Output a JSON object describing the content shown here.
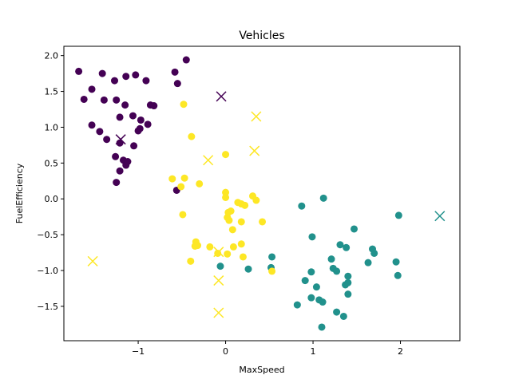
{
  "chart_data": {
    "type": "scatter",
    "title": "Vehicles",
    "xlabel": "MaxSpeed",
    "ylabel": "FuelEfficiency",
    "xlim": [
      -1.85,
      2.68
    ],
    "ylim": [
      -1.98,
      2.13
    ],
    "xticks": [
      -1,
      0,
      1,
      2
    ],
    "xtick_labels": [
      "−1",
      "0",
      "1",
      "2"
    ],
    "yticks": [
      -1.5,
      -1.0,
      -0.5,
      0.0,
      0.5,
      1.0,
      1.5,
      2.0
    ],
    "ytick_labels": [
      "−1.5",
      "−1.0",
      "−0.5",
      "0.0",
      "0.5",
      "1.0",
      "1.5",
      "2.0"
    ],
    "grid": false,
    "legend": "none",
    "series": [
      {
        "marker": "circle",
        "color": "#440154",
        "points": [
          [
            -1.68,
            1.78
          ],
          [
            -1.62,
            1.39
          ],
          [
            -1.53,
            1.53
          ],
          [
            -1.53,
            1.03
          ],
          [
            -1.44,
            0.94
          ],
          [
            -1.41,
            1.75
          ],
          [
            -1.39,
            1.38
          ],
          [
            -1.36,
            0.83
          ],
          [
            -1.27,
            1.65
          ],
          [
            -1.25,
            1.38
          ],
          [
            -1.26,
            0.59
          ],
          [
            -1.25,
            0.23
          ],
          [
            -1.21,
            0.78
          ],
          [
            -1.21,
            0.39
          ],
          [
            -1.21,
            1.14
          ],
          [
            -1.17,
            0.54
          ],
          [
            -1.15,
            1.31
          ],
          [
            -1.14,
            1.71
          ],
          [
            -1.14,
            0.47
          ],
          [
            -1.12,
            0.52
          ],
          [
            -1.06,
            1.16
          ],
          [
            -1.05,
            0.74
          ],
          [
            -1.03,
            1.73
          ],
          [
            -1.0,
            0.95
          ],
          [
            -0.98,
            0.98
          ],
          [
            -0.97,
            1.1
          ],
          [
            -0.91,
            1.65
          ],
          [
            -0.89,
            1.04
          ],
          [
            -0.86,
            1.31
          ],
          [
            -0.82,
            1.3
          ],
          [
            -0.58,
            1.77
          ],
          [
            -0.55,
            1.61
          ],
          [
            -0.45,
            1.94
          ],
          [
            -0.56,
            0.12
          ]
        ]
      },
      {
        "marker": "circle",
        "color": "#21918c",
        "points": [
          [
            -0.06,
            -0.94
          ],
          [
            0.26,
            -0.98
          ],
          [
            0.52,
            -0.96
          ],
          [
            0.53,
            -0.81
          ],
          [
            0.82,
            -1.48
          ],
          [
            0.87,
            -0.1
          ],
          [
            0.91,
            -1.14
          ],
          [
            0.98,
            -1.02
          ],
          [
            0.98,
            -1.38
          ],
          [
            0.99,
            -0.53
          ],
          [
            1.04,
            -1.23
          ],
          [
            1.07,
            -1.41
          ],
          [
            1.11,
            -1.44
          ],
          [
            1.1,
            -1.79
          ],
          [
            1.12,
            0.01
          ],
          [
            1.21,
            -0.84
          ],
          [
            1.23,
            -0.97
          ],
          [
            1.27,
            -1.01
          ],
          [
            1.27,
            -1.58
          ],
          [
            1.31,
            -0.64
          ],
          [
            1.35,
            -1.64
          ],
          [
            1.37,
            -1.2
          ],
          [
            1.38,
            -0.68
          ],
          [
            1.4,
            -1.17
          ],
          [
            1.4,
            -1.08
          ],
          [
            1.4,
            -1.33
          ],
          [
            1.47,
            -0.42
          ],
          [
            1.63,
            -0.89
          ],
          [
            1.68,
            -0.7
          ],
          [
            1.7,
            -0.76
          ],
          [
            1.95,
            -0.88
          ],
          [
            1.97,
            -1.07
          ],
          [
            1.98,
            -0.23
          ]
        ]
      },
      {
        "marker": "circle",
        "color": "#fde725",
        "points": [
          [
            -0.61,
            0.28
          ],
          [
            -0.51,
            0.17
          ],
          [
            -0.49,
            -0.22
          ],
          [
            -0.47,
            0.29
          ],
          [
            -0.48,
            1.32
          ],
          [
            -0.39,
            0.87
          ],
          [
            -0.4,
            -0.87
          ],
          [
            -0.35,
            -0.66
          ],
          [
            -0.34,
            -0.6
          ],
          [
            -0.32,
            -0.65
          ],
          [
            -0.3,
            0.21
          ],
          [
            -0.18,
            -0.67
          ],
          [
            -0.09,
            -0.76
          ],
          [
            0.0,
            0.62
          ],
          [
            0.0,
            0.09
          ],
          [
            0.0,
            0.02
          ],
          [
            0.02,
            -0.26
          ],
          [
            0.02,
            -0.77
          ],
          [
            0.03,
            -0.19
          ],
          [
            0.04,
            -0.3
          ],
          [
            0.06,
            -0.17
          ],
          [
            0.08,
            -0.43
          ],
          [
            0.09,
            -0.67
          ],
          [
            0.14,
            -0.05
          ],
          [
            0.18,
            -0.07
          ],
          [
            0.18,
            -0.63
          ],
          [
            0.18,
            -0.32
          ],
          [
            0.2,
            -0.81
          ],
          [
            0.22,
            -0.09
          ],
          [
            0.31,
            0.04
          ],
          [
            0.35,
            -0.02
          ],
          [
            0.42,
            -0.32
          ],
          [
            0.53,
            -1.01
          ]
        ]
      },
      {
        "marker": "x",
        "color": "#440154",
        "points": [
          [
            -1.2,
            0.83
          ],
          [
            -0.05,
            1.43
          ]
        ]
      },
      {
        "marker": "x",
        "color": "#21918c",
        "points": [
          [
            2.45,
            -0.24
          ]
        ]
      },
      {
        "marker": "x",
        "color": "#fde725",
        "points": [
          [
            0.35,
            1.15
          ],
          [
            0.33,
            0.67
          ],
          [
            -0.2,
            0.54
          ],
          [
            -1.52,
            -0.87
          ],
          [
            -0.08,
            -0.74
          ],
          [
            -0.08,
            -1.14
          ],
          [
            -0.08,
            -1.59
          ]
        ]
      }
    ]
  }
}
